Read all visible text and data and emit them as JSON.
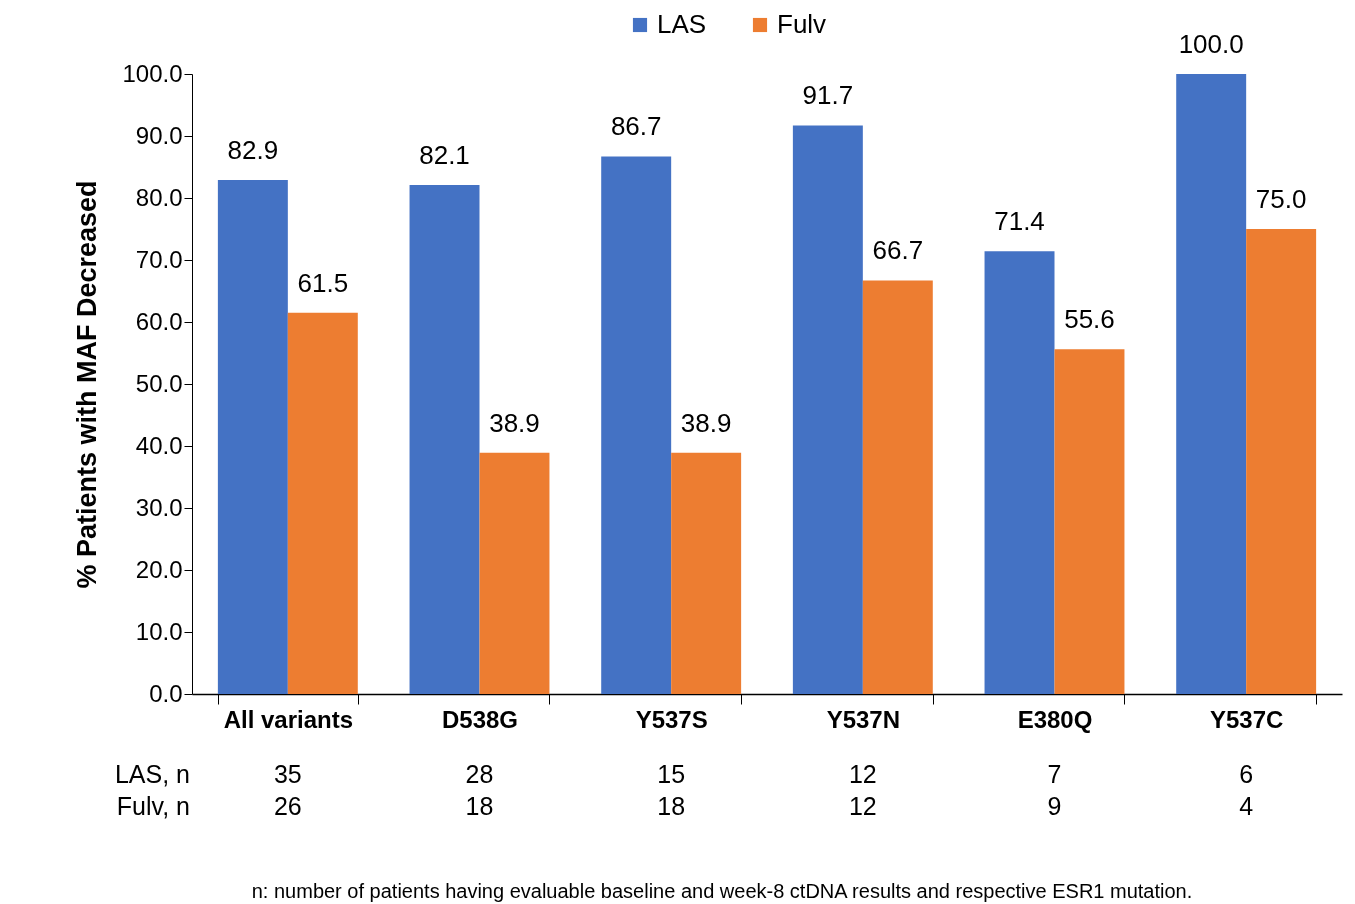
{
  "chart_data": {
    "type": "bar",
    "ylabel": "% Patients with MAF Decreased",
    "categories": [
      "All variants",
      "D538G",
      "Y537S",
      "Y537N",
      "E380Q",
      "Y537C"
    ],
    "series": [
      {
        "name": "LAS",
        "color": "#4472c4",
        "values": [
          82.9,
          82.1,
          86.7,
          91.7,
          71.4,
          100
        ],
        "value_labels": [
          "82.9",
          "82.1",
          "86.7",
          "91.7",
          "71.4",
          "100.0"
        ]
      },
      {
        "name": "Fulv",
        "color": "#ed7d31",
        "values": [
          61.5,
          38.9,
          38.9,
          66.7,
          55.6,
          75
        ],
        "value_labels": [
          "61.5",
          "38.9",
          "38.9",
          "66.7",
          "55.6",
          "75.0"
        ]
      }
    ],
    "ylim": [
      0,
      100
    ],
    "yticks": [
      {
        "value": 0,
        "label": "0.0"
      },
      {
        "value": 10,
        "label": "10.0"
      },
      {
        "value": 20,
        "label": "20.0"
      },
      {
        "value": 30,
        "label": "30.0"
      },
      {
        "value": 40,
        "label": "40.0"
      },
      {
        "value": 50,
        "label": "50.0"
      },
      {
        "value": 60,
        "label": "60.0"
      },
      {
        "value": 70,
        "label": "70.0"
      },
      {
        "value": 80,
        "label": "80.0"
      },
      {
        "value": 90,
        "label": "90.0"
      },
      {
        "value": 100,
        "label": "100.0"
      }
    ],
    "grid": false,
    "legend": "top",
    "annotations": [
      "LAS, n",
      "35",
      "28",
      "15",
      "12",
      "7",
      "6",
      "Fulv, n",
      "26",
      "18",
      "18",
      "12",
      "9",
      "4",
      "n: number of patients having evaluable baseline and week-8 ctDNA results and respective ESR1 mutation."
    ]
  }
}
